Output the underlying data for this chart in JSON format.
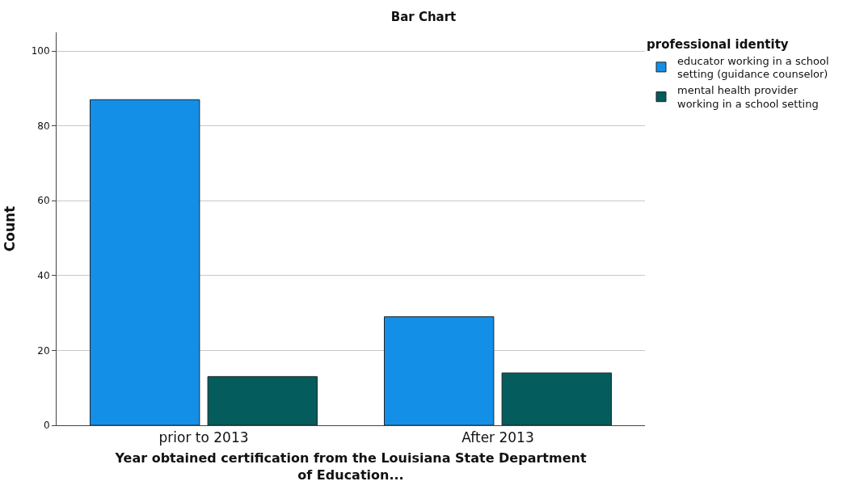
{
  "chart_data": {
    "type": "bar",
    "title": "Bar Chart",
    "xlabel": "Year obtained certification from the Louisiana State Department of Education...",
    "ylabel": "Count",
    "legend_title": "professional identity",
    "categories": [
      "prior to 2013",
      "After 2013"
    ],
    "series": [
      {
        "name": "educator working in a school setting (guidance counselor)",
        "color": "#138fe8",
        "values": [
          87,
          29
        ]
      },
      {
        "name": "mental health provider working in a school setting",
        "color": "#045c5c",
        "values": [
          13,
          14
        ]
      }
    ],
    "ylim": [
      0,
      105
    ],
    "yticks": [
      0,
      20,
      40,
      60,
      80,
      100
    ],
    "grid": "y",
    "legend": "top right"
  }
}
